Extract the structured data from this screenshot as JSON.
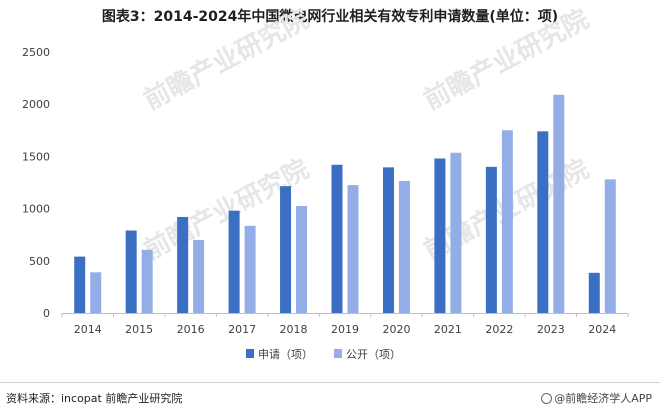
{
  "title": "图表3：2014-2024年中国微电网行业相关有效专利申请数量(单位：项)",
  "source": "资料来源：incopat 前瞻产业研究院",
  "brand": "@前瞻经济学人APP",
  "watermark": "前瞻产业研究院",
  "colors": {
    "apply": "#3a6fc4",
    "publish": "#93aee6",
    "axis": "#bfbfbf",
    "text": "#404040"
  },
  "chart_data": {
    "type": "bar",
    "title": "图表3：2014-2024年中国微电网行业相关有效专利申请数量(单位：项)",
    "categories": [
      "2014",
      "2015",
      "2016",
      "2017",
      "2018",
      "2019",
      "2020",
      "2021",
      "2022",
      "2023",
      "2024"
    ],
    "series": [
      {
        "name": "申请（项）",
        "values": [
          540,
          790,
          920,
          980,
          1215,
          1420,
          1395,
          1480,
          1400,
          1740,
          385
        ]
      },
      {
        "name": "公开（项）",
        "values": [
          390,
          605,
          700,
          835,
          1025,
          1225,
          1265,
          1535,
          1750,
          2090,
          1280
        ]
      }
    ],
    "yticks": [
      0,
      500,
      1000,
      1500,
      2000,
      2500
    ],
    "ylim": [
      0,
      2500
    ],
    "xlabel": "",
    "ylabel": "",
    "grid": false,
    "legend": "bottom"
  }
}
